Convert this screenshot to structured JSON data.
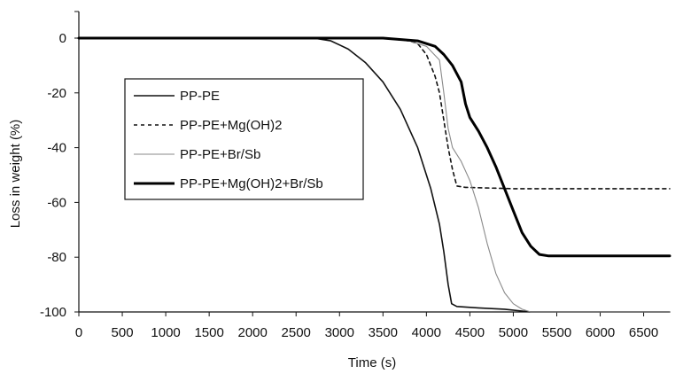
{
  "chart_data": {
    "type": "line",
    "title": "",
    "xlabel": "Time (s)",
    "ylabel": "Loss in weight (%)",
    "xlim": [
      0,
      6800
    ],
    "ylim": [
      -100,
      10
    ],
    "x_ticks": [
      0,
      500,
      1000,
      1500,
      2000,
      2500,
      3000,
      3500,
      4000,
      4500,
      5000,
      5500,
      6000,
      6500
    ],
    "x_tick_labels": [
      "0",
      "500",
      "1000",
      "1500",
      "2000",
      "2500",
      "3000",
      "3500",
      "4000",
      "4500",
      "5000",
      "5500",
      "6000",
      "6500"
    ],
    "y_ticks": [
      0,
      -20,
      -40,
      -60,
      -80,
      -100
    ],
    "y_tick_labels": [
      "0",
      "-20",
      "-40",
      "-60",
      "-80",
      "-100"
    ],
    "grid": false,
    "legend_position": "center-left",
    "series": [
      {
        "name": "PP-PE",
        "style": "solid",
        "color": "#111111",
        "width": 1.6,
        "points": [
          [
            0,
            0
          ],
          [
            2700,
            0
          ],
          [
            2900,
            -1
          ],
          [
            3100,
            -4
          ],
          [
            3300,
            -9
          ],
          [
            3500,
            -16
          ],
          [
            3700,
            -26
          ],
          [
            3900,
            -40
          ],
          [
            4050,
            -55
          ],
          [
            4150,
            -68
          ],
          [
            4200,
            -78
          ],
          [
            4250,
            -90
          ],
          [
            4290,
            -97
          ],
          [
            4350,
            -98
          ],
          [
            4600,
            -98.5
          ],
          [
            4900,
            -99
          ],
          [
            5200,
            -100
          ],
          [
            6800,
            -100
          ]
        ]
      },
      {
        "name": "PP-PE+Mg(OH)2",
        "style": "dashed",
        "color": "#111111",
        "width": 1.6,
        "points": [
          [
            0,
            0
          ],
          [
            3500,
            0
          ],
          [
            3800,
            -1
          ],
          [
            3900,
            -2
          ],
          [
            4000,
            -6
          ],
          [
            4100,
            -14
          ],
          [
            4150,
            -20
          ],
          [
            4200,
            -30
          ],
          [
            4250,
            -40
          ],
          [
            4300,
            -48
          ],
          [
            4350,
            -54
          ],
          [
            4450,
            -54.5
          ],
          [
            5000,
            -55
          ],
          [
            6800,
            -55
          ]
        ]
      },
      {
        "name": "PP-PE+Br/Sb",
        "style": "solid",
        "color": "#8a8a8a",
        "width": 1.1,
        "points": [
          [
            0,
            0
          ],
          [
            3500,
            0
          ],
          [
            3800,
            -1
          ],
          [
            4000,
            -3
          ],
          [
            4150,
            -8
          ],
          [
            4200,
            -20
          ],
          [
            4250,
            -33
          ],
          [
            4300,
            -40
          ],
          [
            4400,
            -45
          ],
          [
            4500,
            -52
          ],
          [
            4600,
            -62
          ],
          [
            4700,
            -75
          ],
          [
            4800,
            -86
          ],
          [
            4900,
            -93
          ],
          [
            5000,
            -97
          ],
          [
            5100,
            -99
          ],
          [
            5200,
            -100
          ],
          [
            6800,
            -100
          ]
        ]
      },
      {
        "name": "PP-PE+Mg(OH)2+Br/Sb",
        "style": "solid",
        "color": "#000000",
        "width": 3,
        "points": [
          [
            0,
            0
          ],
          [
            3500,
            0
          ],
          [
            3900,
            -1
          ],
          [
            4100,
            -3
          ],
          [
            4200,
            -6
          ],
          [
            4300,
            -10
          ],
          [
            4400,
            -16
          ],
          [
            4450,
            -24
          ],
          [
            4500,
            -29
          ],
          [
            4600,
            -34
          ],
          [
            4700,
            -40
          ],
          [
            4800,
            -47
          ],
          [
            4900,
            -55
          ],
          [
            5000,
            -63
          ],
          [
            5100,
            -71
          ],
          [
            5200,
            -76
          ],
          [
            5300,
            -79
          ],
          [
            5400,
            -79.5
          ],
          [
            6800,
            -79.5
          ]
        ]
      }
    ]
  }
}
